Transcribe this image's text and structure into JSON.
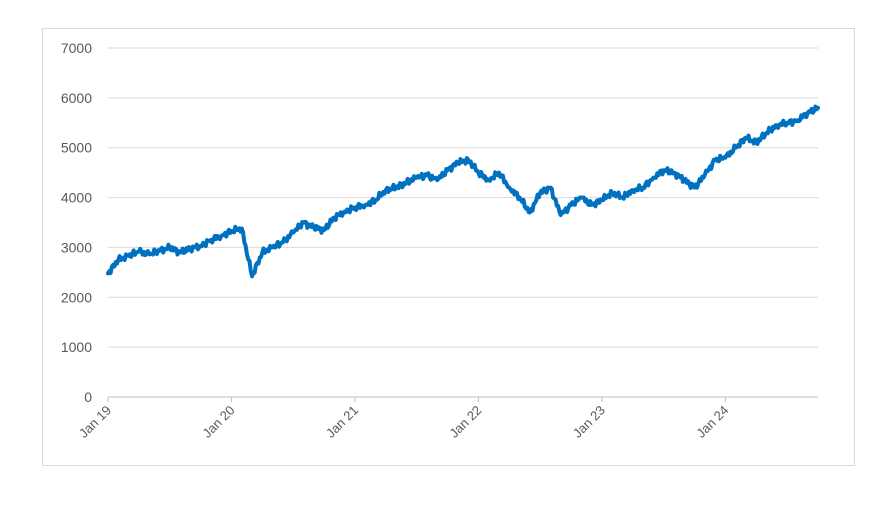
{
  "chart_data": {
    "type": "line",
    "title": "",
    "xlabel": "",
    "ylabel": "",
    "ylim": [
      0,
      7000
    ],
    "yticks": [
      0,
      1000,
      2000,
      3000,
      4000,
      5000,
      6000,
      7000
    ],
    "ytick_labels": [
      "0",
      "1000",
      "2000",
      "3000",
      "4000",
      "5000",
      "6000",
      "7000"
    ],
    "xlim": [
      "2019-01",
      "2024-10"
    ],
    "xticks": [
      "2019-01",
      "2020-01",
      "2021-01",
      "2022-01",
      "2023-01",
      "2024-01"
    ],
    "xtick_labels": [
      "Jan 19",
      "Jan 20",
      "Jan 21",
      "Jan 22",
      "Jan 23",
      "Jan 24"
    ],
    "grid": true,
    "legend": "none",
    "line_color": "#0070c0",
    "series": [
      {
        "x": [
          "2019-01",
          "2019-02",
          "2019-03",
          "2019-04",
          "2019-05",
          "2019-06",
          "2019-07",
          "2019-08",
          "2019-09",
          "2019-10",
          "2019-11",
          "2019-12",
          "2020-01",
          "2020-02",
          "2020-03",
          "2020-04",
          "2020-05",
          "2020-06",
          "2020-07",
          "2020-08",
          "2020-09",
          "2020-10",
          "2020-11",
          "2020-12",
          "2021-01",
          "2021-02",
          "2021-03",
          "2021-04",
          "2021-05",
          "2021-06",
          "2021-07",
          "2021-08",
          "2021-09",
          "2021-10",
          "2021-11",
          "2021-12",
          "2022-01",
          "2022-02",
          "2022-03",
          "2022-04",
          "2022-05",
          "2022-06",
          "2022-07",
          "2022-08",
          "2022-09",
          "2022-10",
          "2022-11",
          "2022-12",
          "2023-01",
          "2023-02",
          "2023-03",
          "2023-04",
          "2023-05",
          "2023-06",
          "2023-07",
          "2023-08",
          "2023-09",
          "2023-10",
          "2023-11",
          "2023-12",
          "2024-01",
          "2024-02",
          "2024-03",
          "2024-04",
          "2024-05",
          "2024-06",
          "2024-07",
          "2024-08",
          "2024-09",
          "2024-10"
        ],
        "values": [
          2480,
          2750,
          2830,
          2920,
          2860,
          2930,
          3000,
          2900,
          2980,
          3030,
          3150,
          3230,
          3330,
          3380,
          2420,
          2900,
          3000,
          3100,
          3300,
          3500,
          3400,
          3350,
          3600,
          3720,
          3800,
          3850,
          3950,
          4150,
          4200,
          4300,
          4400,
          4450,
          4350,
          4550,
          4700,
          4760,
          4500,
          4350,
          4500,
          4200,
          4000,
          3700,
          4100,
          4200,
          3650,
          3850,
          4000,
          3850,
          3950,
          4100,
          4000,
          4150,
          4200,
          4400,
          4550,
          4500,
          4350,
          4200,
          4450,
          4750,
          4800,
          5000,
          5200,
          5100,
          5300,
          5450,
          5500,
          5550,
          5700,
          5800
        ]
      }
    ]
  }
}
